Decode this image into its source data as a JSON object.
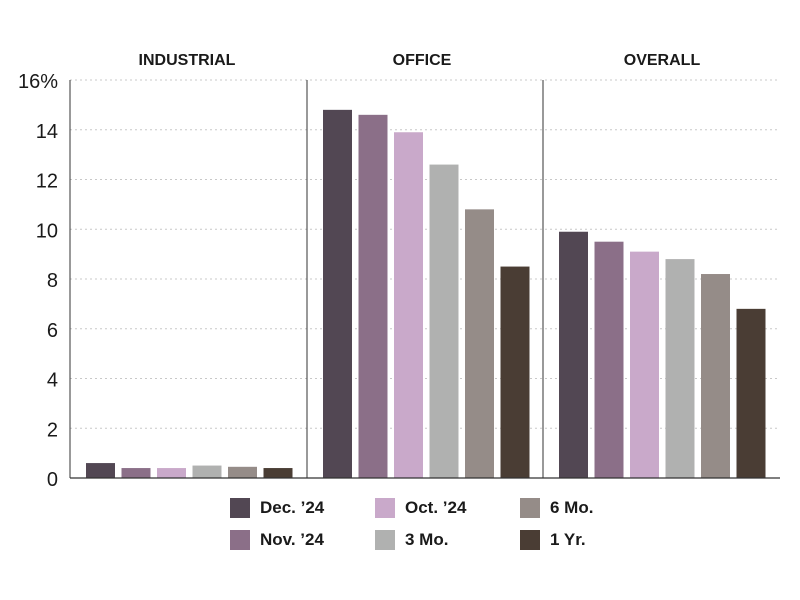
{
  "chart_data": {
    "type": "bar",
    "panels": [
      "INDUSTRIAL",
      "OFFICE",
      "OVERALL"
    ],
    "series": [
      {
        "name": "Dec. ’24",
        "color": "#524753",
        "values": [
          0.6,
          14.8,
          9.9
        ]
      },
      {
        "name": "Nov. ’24",
        "color": "#8b6f88",
        "values": [
          0.4,
          14.6,
          9.5
        ]
      },
      {
        "name": "Oct. ’24",
        "color": "#c9a9ca",
        "values": [
          0.4,
          13.9,
          9.1
        ]
      },
      {
        "name": "3 Mo.",
        "color": "#b0b1b0",
        "values": [
          0.5,
          12.6,
          8.8
        ]
      },
      {
        "name": "6 Mo.",
        "color": "#958c88",
        "values": [
          0.45,
          10.8,
          8.2
        ]
      },
      {
        "name": "1 Yr.",
        "color": "#4a3d34",
        "values": [
          0.4,
          8.5,
          6.8
        ]
      }
    ],
    "yticks": [
      "0",
      "2",
      "4",
      "6",
      "8",
      "10",
      "12",
      "14",
      "16%"
    ],
    "ylim": [
      0,
      16
    ],
    "grid": true,
    "legend_position": "bottom"
  }
}
